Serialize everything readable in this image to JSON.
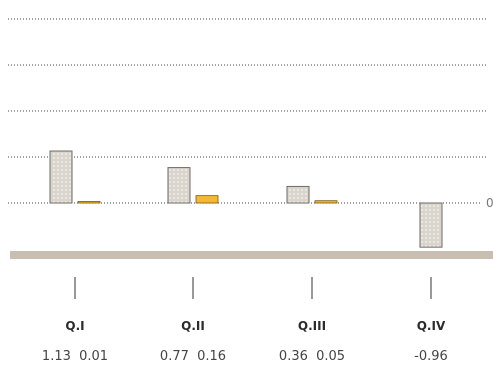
{
  "chart_data": {
    "type": "bar",
    "categories": [
      "Q.I",
      "Q.II",
      "Q.III",
      "Q.IV"
    ],
    "series": [
      {
        "values": [
          1.13,
          0.77,
          0.36,
          -0.96
        ]
      },
      {
        "values": [
          0.01,
          0.16,
          0.05,
          null
        ]
      }
    ],
    "value_labels": [
      "1.13  0.01",
      "0.77  0.16",
      "0.36  0.05",
      "-0.96"
    ],
    "zero_label": "0",
    "gridlines": [
      1,
      2,
      3,
      4
    ],
    "grid": true,
    "colors": {
      "primary_fill": "#d9d4cc",
      "primary_dot": "#ffffff",
      "primary_stroke": "#6e6a64",
      "secondary_fill": "#f5b82e",
      "secondary_stroke": "#7a5a10",
      "baseline_band": "#c8bfb2",
      "grid": "#444444",
      "tick": "#333333"
    }
  }
}
